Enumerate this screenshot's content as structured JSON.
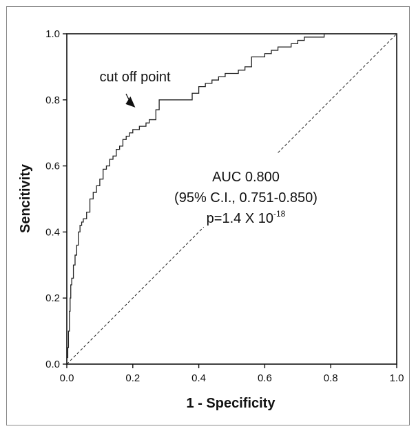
{
  "chart_data": {
    "type": "line",
    "title": "",
    "xlabel": "1 - Specificity",
    "ylabel": "Sencitivity",
    "xlim": [
      0,
      1
    ],
    "ylim": [
      0,
      1
    ],
    "x_ticks": [
      "0.0",
      "0.2",
      "0.4",
      "0.6",
      "0.8",
      "1.0"
    ],
    "y_ticks": [
      "0.0",
      "0.2",
      "0.4",
      "0.6",
      "0.8",
      "1.0"
    ],
    "grid": false,
    "legend": "none",
    "colors": {
      "curve": "#222222",
      "reference": "#222222"
    },
    "series": [
      {
        "style": "solid",
        "x": [
          0.0,
          0.003,
          0.005,
          0.008,
          0.01,
          0.012,
          0.015,
          0.02,
          0.025,
          0.03,
          0.035,
          0.04,
          0.045,
          0.05,
          0.055,
          0.06,
          0.07,
          0.08,
          0.09,
          0.1,
          0.11,
          0.12,
          0.13,
          0.14,
          0.15,
          0.16,
          0.17,
          0.18,
          0.19,
          0.2,
          0.21,
          0.22,
          0.23,
          0.24,
          0.25,
          0.27,
          0.28,
          0.3,
          0.32,
          0.35,
          0.38,
          0.4,
          0.42,
          0.44,
          0.46,
          0.48,
          0.5,
          0.52,
          0.54,
          0.56,
          0.58,
          0.6,
          0.62,
          0.64,
          0.66,
          0.68,
          0.7,
          0.72,
          0.74,
          0.76,
          0.78,
          0.8,
          0.85,
          0.9,
          0.95,
          1.0
        ],
        "values": [
          0.0,
          0.02,
          0.05,
          0.1,
          0.16,
          0.2,
          0.24,
          0.26,
          0.3,
          0.33,
          0.36,
          0.4,
          0.42,
          0.43,
          0.44,
          0.44,
          0.46,
          0.5,
          0.52,
          0.54,
          0.56,
          0.59,
          0.6,
          0.62,
          0.63,
          0.65,
          0.66,
          0.68,
          0.69,
          0.7,
          0.71,
          0.71,
          0.72,
          0.72,
          0.73,
          0.74,
          0.77,
          0.8,
          0.8,
          0.8,
          0.8,
          0.82,
          0.84,
          0.85,
          0.86,
          0.87,
          0.88,
          0.88,
          0.89,
          0.9,
          0.93,
          0.93,
          0.94,
          0.95,
          0.96,
          0.96,
          0.97,
          0.98,
          0.99,
          0.99,
          0.99,
          1.0,
          1.0,
          1.0,
          1.0,
          1.0
        ]
      },
      {
        "style": "dashed",
        "x": [
          0,
          1
        ],
        "values": [
          0,
          1
        ]
      }
    ],
    "annotations": {
      "cutoff": {
        "text": "cut off point",
        "x": 0.22,
        "y": 0.71
      },
      "auc": "AUC 0.800",
      "ci": "(95% C.I., 0.751-0.850)",
      "p_base": "p=1.4 X 10",
      "p_exp": "-18"
    }
  }
}
